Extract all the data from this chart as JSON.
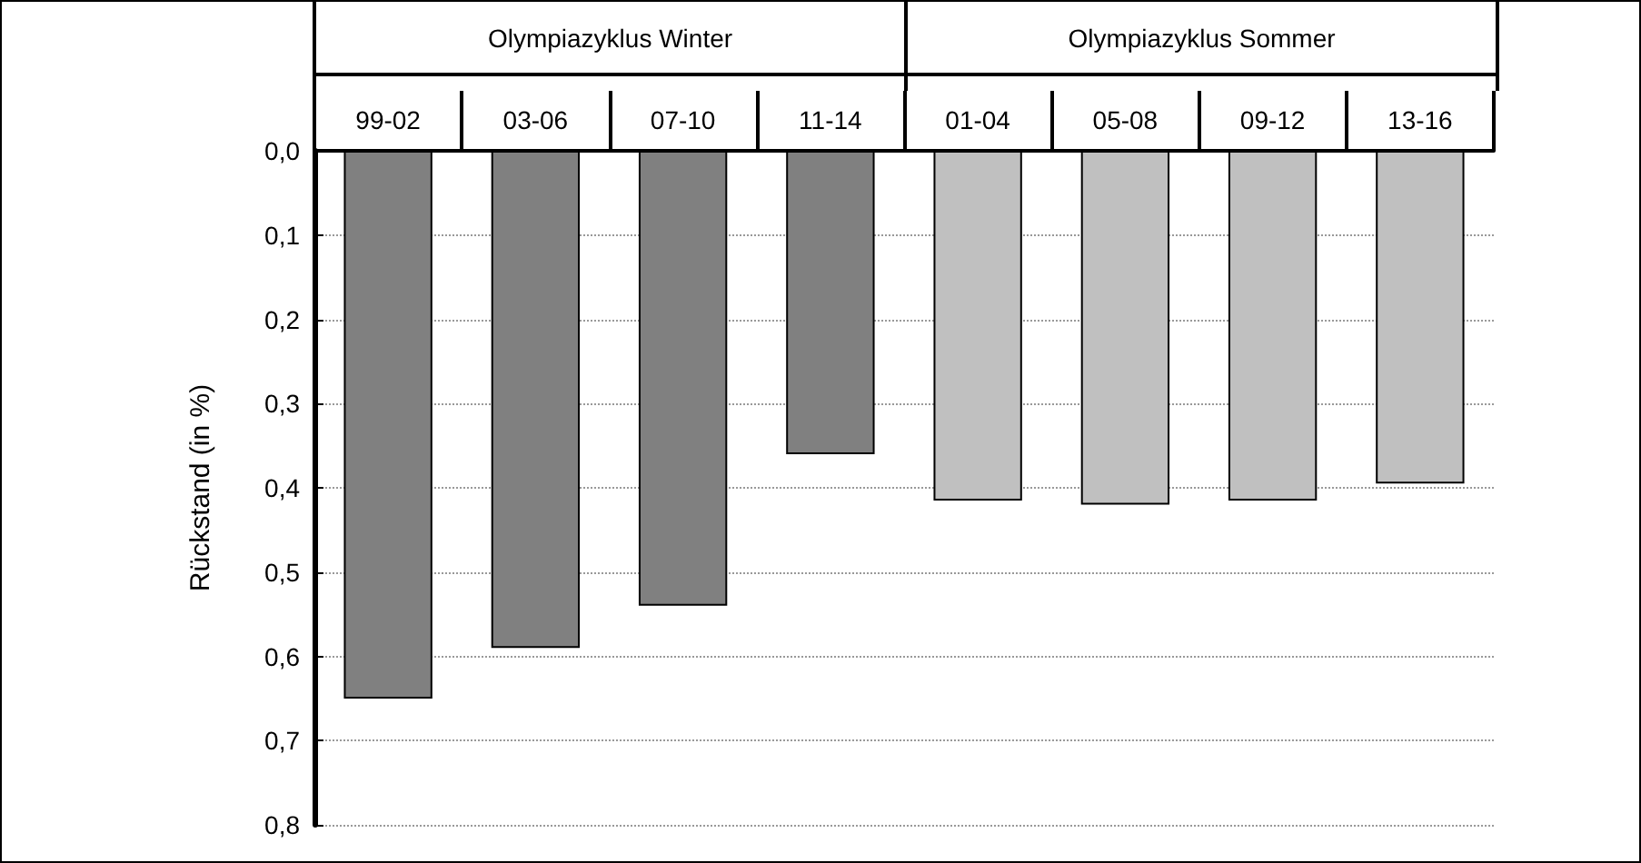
{
  "chart_data": {
    "type": "bar",
    "ylabel": "Rückstand (in %)",
    "categories": [
      "99-02",
      "03-06",
      "07-10",
      "11-14",
      "01-04",
      "05-08",
      "09-12",
      "13-16"
    ],
    "series": [
      {
        "color": "#808080",
        "values": [
          0.65,
          0.59,
          0.54,
          0.36,
          null,
          null,
          null,
          null
        ]
      },
      {
        "color": "#c0c0c0",
        "values": [
          null,
          null,
          null,
          null,
          0.415,
          0.42,
          0.415,
          0.395
        ]
      }
    ],
    "ylim": [
      0.8,
      0
    ],
    "yticks": [
      {
        "value": 0,
        "label": "0,0"
      },
      {
        "value": 0.1,
        "label": "0,1"
      },
      {
        "value": 0.2,
        "label": "0,2"
      },
      {
        "value": 0.3,
        "label": "0,3"
      },
      {
        "value": 0.4,
        "label": "0,4"
      },
      {
        "value": 0.5,
        "label": "0,5"
      },
      {
        "value": 0.6,
        "label": "0,6"
      },
      {
        "value": 0.7,
        "label": "0,7"
      },
      {
        "value": 0.8,
        "label": "0,8"
      }
    ],
    "annotations": [
      "Olympiazyklus Winter",
      "Olympiazyklus Sommer"
    ],
    "grid": "y"
  }
}
